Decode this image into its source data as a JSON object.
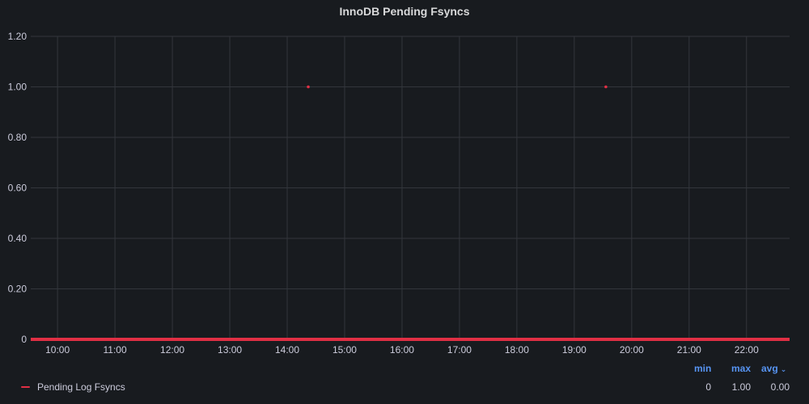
{
  "panel": {
    "title": "InnoDB Pending Fsyncs"
  },
  "colors": {
    "background": "#181b1f",
    "series": "#e02f44",
    "grid": "#33363c",
    "legend_header": "#5794f2"
  },
  "legend": {
    "headers": {
      "min": "min",
      "max": "max",
      "avg": "avg"
    },
    "sort_icon": "chevron-down-icon",
    "series": [
      {
        "name": "Pending Log Fsyncs",
        "min": "0",
        "max": "1.00",
        "avg": "0.00"
      }
    ]
  },
  "chart_data": {
    "type": "line",
    "title": "InnoDB Pending Fsyncs",
    "xlabel": "",
    "ylabel": "",
    "ylim": [
      0,
      1.2
    ],
    "xlim": [
      "09:32",
      "22:45"
    ],
    "y_ticks": [
      "0",
      "0.20",
      "0.40",
      "0.60",
      "0.80",
      "1.00",
      "1.20"
    ],
    "y_tick_values": [
      0,
      0.2,
      0.4,
      0.6,
      0.8,
      1.0,
      1.2
    ],
    "x_ticks": [
      "10:00",
      "11:00",
      "12:00",
      "13:00",
      "14:00",
      "15:00",
      "16:00",
      "17:00",
      "18:00",
      "19:00",
      "20:00",
      "21:00",
      "22:00"
    ],
    "grid": true,
    "legend_position": "bottom",
    "series": [
      {
        "name": "Pending Log Fsyncs",
        "color": "#e02f44",
        "baseline_value": 0,
        "points": [
          {
            "x": "14:22",
            "y": 1.0
          },
          {
            "x": "19:33",
            "y": 1.0
          }
        ]
      }
    ]
  }
}
